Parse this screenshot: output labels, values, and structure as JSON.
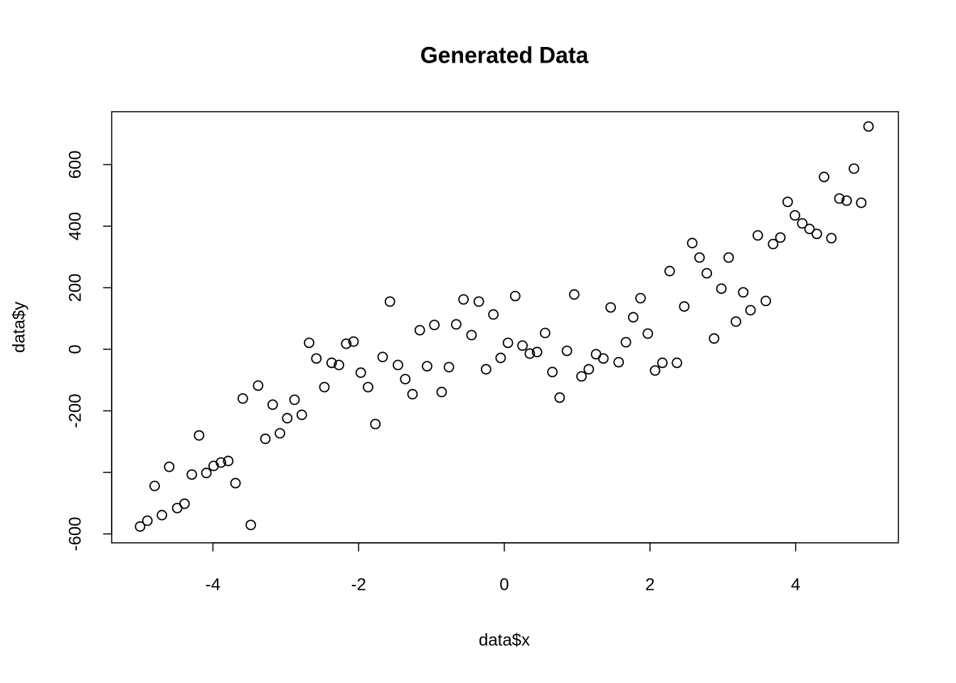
{
  "chart_data": {
    "type": "scatter",
    "title": "Generated Data",
    "x_label": "data$x",
    "y_label": "data$y",
    "color": "#000000",
    "grid": false,
    "xlim": [
      -5.39,
      5.41
    ],
    "ylim": [
      -629,
      772
    ],
    "xticks": [
      -4,
      -2,
      0,
      2,
      4
    ],
    "yticks": [
      -600,
      {
        "value": -400,
        "label": null
      },
      -200,
      0,
      200,
      400,
      600
    ],
    "x": [
      -5,
      -4.9,
      -4.8,
      -4.7,
      -4.6,
      -4.49,
      -4.39,
      -4.29,
      -4.19,
      -4.09,
      -3.99,
      -3.89,
      -3.79,
      -3.69,
      -3.59,
      -3.48,
      -3.38,
      -3.28,
      -3.18,
      -3.08,
      -2.98,
      -2.88,
      -2.78,
      -2.68,
      -2.58,
      -2.47,
      -2.37,
      -2.27,
      -2.17,
      -2.07,
      -1.97,
      -1.87,
      -1.77,
      -1.67,
      -1.57,
      -1.46,
      -1.36,
      -1.26,
      -1.16,
      -1.06,
      -0.96,
      -0.86,
      -0.76,
      -0.66,
      -0.56,
      -0.45,
      -0.35,
      -0.25,
      -0.15,
      -0.05,
      0.05,
      0.15,
      0.25,
      0.35,
      0.45,
      0.56,
      0.66,
      0.76,
      0.86,
      0.96,
      1.06,
      1.16,
      1.26,
      1.36,
      1.46,
      1.57,
      1.67,
      1.77,
      1.87,
      1.97,
      2.07,
      2.17,
      2.27,
      2.37,
      2.47,
      2.58,
      2.68,
      2.78,
      2.88,
      2.98,
      3.08,
      3.18,
      3.28,
      3.38,
      3.48,
      3.59,
      3.69,
      3.79,
      3.89,
      3.99,
      4.09,
      4.19,
      4.29,
      4.39,
      4.49,
      4.6,
      4.7,
      4.8,
      4.9,
      5
    ],
    "values": [
      -576,
      -557,
      -444,
      -539,
      -382,
      -516,
      -502,
      -407,
      -280,
      -402,
      -379,
      -368,
      -363,
      -435,
      -160,
      -571,
      -118,
      -291,
      -180,
      -273,
      -224,
      -164,
      -213,
      21,
      -30,
      -123,
      -44,
      -51,
      18,
      25,
      -76,
      -123,
      -243,
      -25,
      155,
      -51,
      -97,
      -146,
      62,
      -55,
      79,
      -139,
      -58,
      81,
      162,
      46,
      155,
      -65,
      113,
      -28,
      21,
      173,
      12,
      -14,
      -9,
      53,
      -74,
      -157,
      -5,
      178,
      -88,
      -65,
      -16,
      -30,
      136,
      -42,
      23,
      104,
      166,
      51,
      -69,
      -44,
      254,
      -44,
      139,
      345,
      298,
      247,
      35,
      197,
      298,
      90,
      185,
      127,
      370,
      157,
      342,
      363,
      479,
      435,
      409,
      391,
      375,
      560,
      361,
      490,
      483,
      587,
      476,
      724
    ]
  }
}
